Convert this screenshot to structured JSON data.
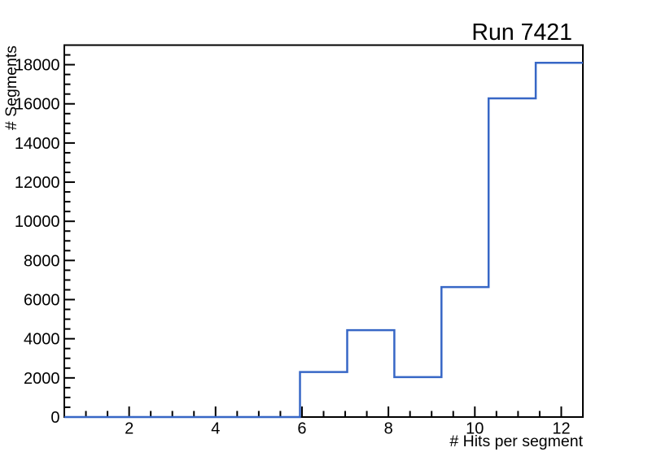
{
  "window": {
    "background_color": "#ffffff"
  },
  "chart_data": {
    "type": "histogram-step",
    "title": "Run 7421",
    "xlabel": "# Hits per segment",
    "ylabel": "# Segments",
    "grid": "off",
    "legend": "none",
    "line_color": "#3767c6",
    "frame_color": "#000000",
    "bins": 11,
    "bin_edges": [
      0.5,
      1.5909,
      2.6818,
      3.7727,
      4.8636,
      5.9545,
      7.0455,
      8.1364,
      9.2273,
      10.3182,
      11.4091,
      12.5
    ],
    "counts": [
      0,
      0,
      0,
      0,
      0,
      2300,
      4440,
      2040,
      6640,
      16280,
      18095
    ],
    "x_axis": {
      "title": "# Hits per segment",
      "range": [
        0.5,
        12.5
      ],
      "major_ticks": [
        2,
        4,
        6,
        8,
        10,
        12
      ],
      "tick_labels": [
        "2",
        "4",
        "6",
        "8",
        "10",
        "12"
      ],
      "minor_step": 0.5
    },
    "y_axis": {
      "title": "# Segments",
      "range": [
        0,
        19000
      ],
      "major_ticks": [
        0,
        2000,
        4000,
        6000,
        8000,
        10000,
        12000,
        14000,
        16000,
        18000
      ],
      "tick_labels": [
        "0",
        "2000",
        "4000",
        "6000",
        "8000",
        "10000",
        "12000",
        "14000",
        "16000",
        "18000"
      ],
      "minor_step": 500
    }
  }
}
